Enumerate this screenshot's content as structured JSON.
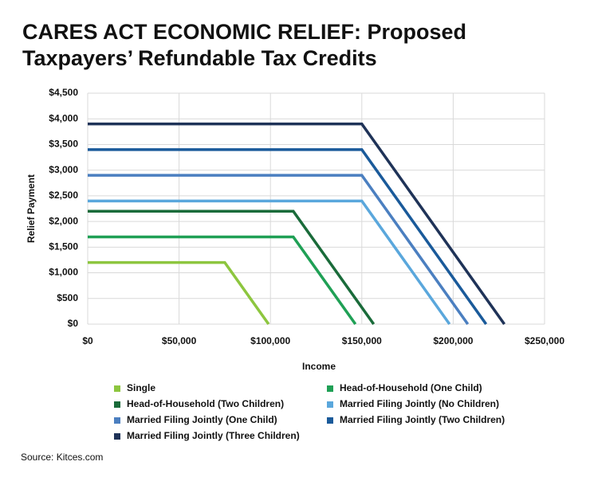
{
  "chart_data": {
    "type": "line",
    "title": [
      "CARES ACT ECONOMIC RELIEF: Proposed",
      "Taxpayers’ Refundable Tax Credits"
    ],
    "x_label": "Income",
    "y_label": "Relief Payment",
    "xlim": [
      0,
      250000
    ],
    "xticks": [
      {
        "value": 0,
        "label": "$0"
      },
      {
        "value": 50000,
        "label": "$50,000"
      },
      {
        "value": 100000,
        "label": "$100,000"
      },
      {
        "value": 150000,
        "label": "$150,000"
      },
      {
        "value": 200000,
        "label": "$200,000"
      },
      {
        "value": 250000,
        "label": "$250,000"
      }
    ],
    "ylim": [
      0,
      4500
    ],
    "yticks": [
      {
        "value": 0,
        "label": "$0"
      },
      {
        "value": 500,
        "label": "$500"
      },
      {
        "value": 1000,
        "label": "$1,000"
      },
      {
        "value": 1500,
        "label": "$1,500"
      },
      {
        "value": 2000,
        "label": "$2,000"
      },
      {
        "value": 2500,
        "label": "$2,500"
      },
      {
        "value": 3000,
        "label": "$3,000"
      },
      {
        "value": 3500,
        "label": "$3,500"
      },
      {
        "value": 4000,
        "label": "$4,000"
      },
      {
        "value": 4500,
        "label": "$4,500"
      }
    ],
    "grid": true,
    "series": [
      {
        "name": "Single",
        "color": "#8dc63f",
        "x": [
          0,
          75000,
          99000
        ],
        "values": [
          1200,
          1200,
          0
        ]
      },
      {
        "name": "Head-of-Household (One Child)",
        "color": "#1fa055",
        "x": [
          0,
          112500,
          146500
        ],
        "values": [
          1700,
          1700,
          0
        ]
      },
      {
        "name": "Head-of-Household (Two Children)",
        "color": "#1a6b3a",
        "x": [
          0,
          112500,
          156500
        ],
        "values": [
          2200,
          2200,
          0
        ]
      },
      {
        "name": "Married Filing Jointly (No Children)",
        "color": "#5aa7dc",
        "x": [
          0,
          150000,
          198000
        ],
        "values": [
          2400,
          2400,
          0
        ]
      },
      {
        "name": "Married Filing Jointly (One Child)",
        "color": "#4b7fc0",
        "x": [
          0,
          150000,
          208000
        ],
        "values": [
          2900,
          2900,
          0
        ]
      },
      {
        "name": "Married Filing Jointly (Two Children)",
        "color": "#1a5a9a",
        "x": [
          0,
          150000,
          218000
        ],
        "values": [
          3400,
          3400,
          0
        ]
      },
      {
        "name": "Married Filing Jointly (Three Children)",
        "color": "#1f3358",
        "x": [
          0,
          150000,
          228000
        ],
        "values": [
          3900,
          3900,
          0
        ]
      }
    ],
    "source": "Source: Kitces.com"
  }
}
